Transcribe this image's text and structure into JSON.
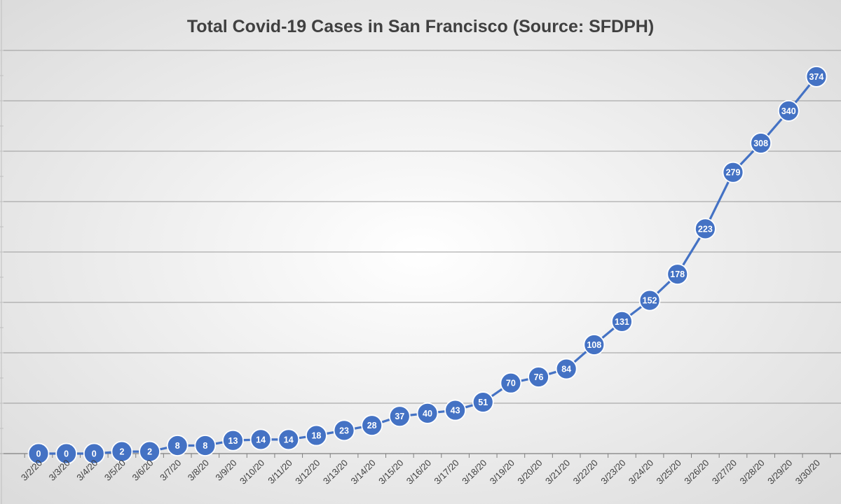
{
  "colors": {
    "series": "#4472C4",
    "marker_stroke": "#ffffff",
    "gridline": "#9a9a9a",
    "axis": "#7f7f7f",
    "text": "#404040",
    "background_inner": "#ffffff",
    "background_outer": "#d9d9d9"
  },
  "chart_data": {
    "type": "line",
    "title": "Total Covid-19 Cases in San Francisco (Source: SFDPH)",
    "xlabel": "",
    "ylabel": "",
    "categories": [
      "3/2/20",
      "3/3/20",
      "3/4/20",
      "3/5/20",
      "3/6/20",
      "3/7/20",
      "3/8/20",
      "3/9/20",
      "3/10/20",
      "3/11/20",
      "3/12/20",
      "3/13/20",
      "3/14/20",
      "3/15/20",
      "3/16/20",
      "3/17/20",
      "3/18/20",
      "3/19/20",
      "3/20/20",
      "3/21/20",
      "3/22/20",
      "3/23/20",
      "3/24/20",
      "3/25/20",
      "3/26/20",
      "3/27/20",
      "3/28/20",
      "3/29/20",
      "3/30/20"
    ],
    "series": [
      {
        "name": "",
        "values": [
          0,
          0,
          0,
          2,
          2,
          8,
          8,
          13,
          14,
          14,
          18,
          23,
          28,
          37,
          40,
          43,
          51,
          70,
          76,
          84,
          108,
          131,
          152,
          178,
          223,
          279,
          308,
          340,
          374
        ]
      }
    ],
    "ylim": [
      0,
      400
    ],
    "gridlines_y": [
      0,
      50,
      100,
      150,
      200,
      250,
      300,
      350,
      400
    ],
    "data_labels": true,
    "markers": true,
    "legend": "none",
    "grid": true,
    "y_tick_labels_visible": false
  }
}
